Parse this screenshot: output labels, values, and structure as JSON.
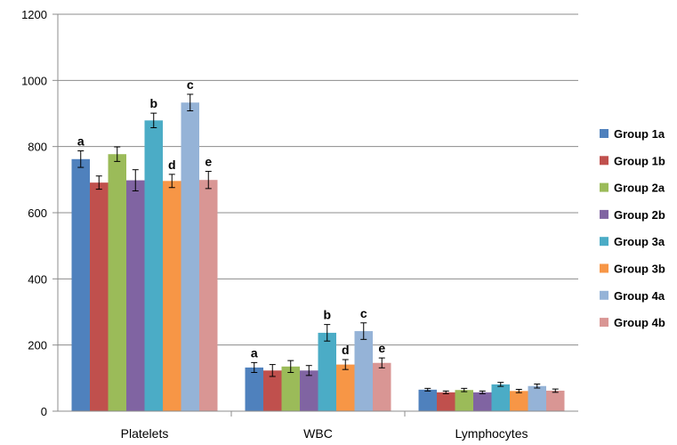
{
  "chart_data": {
    "type": "bar",
    "title": "",
    "xlabel": "",
    "ylabel": "",
    "ylim": [
      0,
      1200
    ],
    "yticks": [
      0,
      200,
      400,
      600,
      800,
      1000,
      1200
    ],
    "grid": true,
    "legend_position": "right",
    "categories": [
      "Platelets",
      "WBC",
      "Lymphocytes"
    ],
    "series": [
      {
        "name": "Group 1a",
        "color": "#4F81BD",
        "values": [
          762,
          132,
          65
        ],
        "errors": [
          25,
          15,
          4
        ]
      },
      {
        "name": "Group 1b",
        "color": "#C0504D",
        "values": [
          691,
          123,
          57
        ],
        "errors": [
          20,
          18,
          4
        ]
      },
      {
        "name": "Group 2a",
        "color": "#9BBB59",
        "values": [
          777,
          135,
          64
        ],
        "errors": [
          22,
          18,
          5
        ]
      },
      {
        "name": "Group 2b",
        "color": "#8064A2",
        "values": [
          698,
          123,
          57
        ],
        "errors": [
          32,
          15,
          4
        ]
      },
      {
        "name": "Group 3a",
        "color": "#4BACC6",
        "values": [
          879,
          237,
          81
        ],
        "errors": [
          22,
          25,
          6
        ]
      },
      {
        "name": "Group 3b",
        "color": "#F79646",
        "values": [
          696,
          141,
          61
        ],
        "errors": [
          20,
          15,
          5
        ]
      },
      {
        "name": "Group 4a",
        "color": "#95B3D7",
        "values": [
          933,
          242,
          76
        ],
        "errors": [
          25,
          25,
          6
        ]
      },
      {
        "name": "Group 4b",
        "color": "#D99694",
        "values": [
          699,
          146,
          62
        ],
        "errors": [
          26,
          15,
          5
        ]
      }
    ],
    "annotations": [
      {
        "category": "Platelets",
        "series": "Group 1a",
        "text": "a"
      },
      {
        "category": "Platelets",
        "series": "Group 3a",
        "text": "b"
      },
      {
        "category": "Platelets",
        "series": "Group 4a",
        "text": "c"
      },
      {
        "category": "Platelets",
        "series": "Group 3b",
        "text": "d"
      },
      {
        "category": "Platelets",
        "series": "Group 4b",
        "text": "e"
      },
      {
        "category": "WBC",
        "series": "Group 1a",
        "text": "a"
      },
      {
        "category": "WBC",
        "series": "Group 3a",
        "text": "b"
      },
      {
        "category": "WBC",
        "series": "Group 4a",
        "text": "c"
      },
      {
        "category": "WBC",
        "series": "Group 3b",
        "text": "d"
      },
      {
        "category": "WBC",
        "series": "Group 4b",
        "text": "e"
      }
    ]
  }
}
